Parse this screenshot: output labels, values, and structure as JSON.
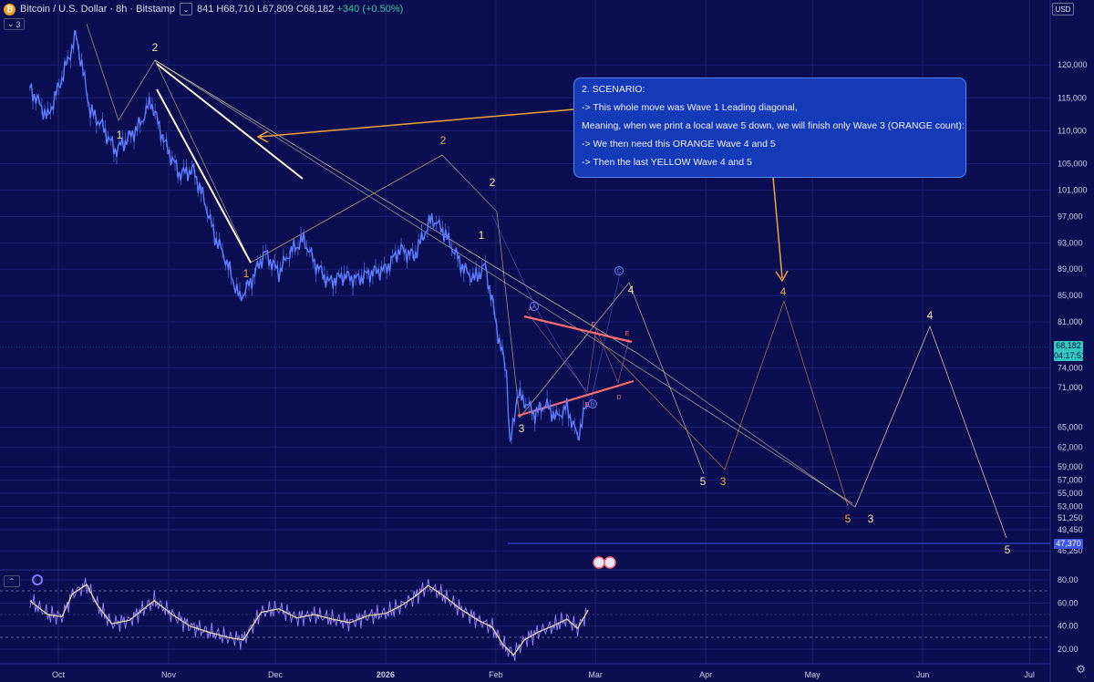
{
  "header": {
    "logo_glyph": "₿",
    "symbol": "Bitcoin / U.S. Dollar · 8h · Bitstamp",
    "dropdown_glyph": "⌄",
    "ohlc_text": "841 H68,710 L67,809 C68,182",
    "change_text": "+340 (+0.50%)",
    "sub_badge": "3",
    "currency": "USD"
  },
  "last_price": "68,182",
  "countdown": "04:17:51",
  "low_marker": "47,370",
  "rsi_badge": "⌃",
  "gear_glyph": "⚙",
  "colors": {
    "background": "#0b0f52",
    "price": "#5e7cff",
    "yellow": "#f3e7a6",
    "orange": "#f2a23c",
    "red": "#ff5b64",
    "rsi": "#9784ff",
    "rsi_ma": "#f1e1b0",
    "grid": "#1b2070"
  },
  "annotation": {
    "lines": [
      "2. SCENARIO:",
      "-> This whole move was Wave 1 Leading diagonal,",
      "Meaning, when we print a local wave 5 down, we will finish only Wave 3 (ORANGE count):",
      "-> We then need this ORANGE Wave 4 and 5",
      "-> Then the last YELLOW Wave 4 and 5"
    ]
  },
  "chart_data": [
    {
      "type": "line",
      "ylim": [
        45000,
        126000
      ],
      "x_tick_labels": [
        "Oct",
        "Nov",
        "Dec",
        "2026",
        "Feb",
        "Mar",
        "Apr",
        "May",
        "Jun",
        "Jul"
      ],
      "y_tick_labels": [
        "120,000",
        "115,000",
        "110,000",
        "105,000",
        "101,000",
        "97,000",
        "93,000",
        "89,000",
        "85,000",
        "81,000",
        "74,000",
        "71,000",
        "65,000",
        "62,000",
        "59,000",
        "57,000",
        "55,000",
        "53,000",
        "51,250",
        "49,450",
        "46,250"
      ],
      "series": [
        {
          "x": [
            "2025-09-23",
            "2025-09-28",
            "2025-10-02",
            "2025-10-06",
            "2025-10-10",
            "2025-10-13",
            "2025-10-17",
            "2025-10-21",
            "2025-10-24",
            "2025-10-27",
            "2025-10-31",
            "2025-11-04",
            "2025-11-08",
            "2025-11-11",
            "2025-11-14",
            "2025-11-17",
            "2025-11-21",
            "2025-11-24",
            "2025-11-28",
            "2025-12-02",
            "2025-12-05",
            "2025-12-09",
            "2025-12-12",
            "2025-12-16",
            "2025-12-20",
            "2025-12-24",
            "2025-12-28",
            "2026-01-01",
            "2026-01-05",
            "2026-01-09",
            "2026-01-12",
            "2026-01-14",
            "2026-01-17",
            "2026-01-20",
            "2026-01-23",
            "2026-01-26",
            "2026-01-29",
            "2026-01-31",
            "2026-02-02",
            "2026-02-04",
            "2026-02-05",
            "2026-02-07",
            "2026-02-09",
            "2026-02-12",
            "2026-02-15",
            "2026-02-18",
            "2026-02-21",
            "2026-02-24",
            "2026-02-26",
            "2026-02-27"
          ],
          "values": [
            116500,
            112000,
            118000,
            124500,
            113000,
            111000,
            107000,
            109000,
            111000,
            114500,
            108000,
            103500,
            104000,
            99500,
            94000,
            90500,
            84500,
            87000,
            91500,
            88500,
            91500,
            93500,
            90000,
            87000,
            88000,
            87500,
            88500,
            89000,
            92000,
            91000,
            94500,
            96700,
            95000,
            92000,
            89000,
            87500,
            89500,
            84000,
            78000,
            73500,
            62000,
            70000,
            69000,
            67000,
            68500,
            66500,
            68000,
            63500,
            67500,
            68182
          ]
        }
      ],
      "wave_labels": [
        "1",
        "2",
        "1",
        "2",
        "1",
        "2",
        "3",
        "4",
        "5",
        "3",
        "4",
        "5",
        "3",
        "4",
        "5"
      ],
      "triangle_labels": [
        "A",
        "B",
        "C",
        "D",
        "E"
      ],
      "circled_labels": [
        "A",
        "B",
        "C"
      ]
    },
    {
      "type": "line",
      "ylim": [
        10,
        85
      ],
      "y_tick_labels": [
        "80.00",
        "60.00",
        "40.00",
        "20.00"
      ],
      "series": [
        {
          "x": [
            "2025-09-23",
            "2025-09-28",
            "2025-10-02",
            "2025-10-05",
            "2025-10-09",
            "2025-10-12",
            "2025-10-16",
            "2025-10-21",
            "2025-10-25",
            "2025-10-28",
            "2025-11-02",
            "2025-11-07",
            "2025-11-12",
            "2025-11-18",
            "2025-11-22",
            "2025-11-27",
            "2025-12-02",
            "2025-12-07",
            "2025-12-12",
            "2025-12-17",
            "2025-12-22",
            "2025-12-27",
            "2026-01-01",
            "2026-01-05",
            "2026-01-09",
            "2026-01-13",
            "2026-01-17",
            "2026-01-22",
            "2026-01-27",
            "2026-01-31",
            "2026-02-03",
            "2026-02-06",
            "2026-02-09",
            "2026-02-13",
            "2026-02-17",
            "2026-02-21",
            "2026-02-24",
            "2026-02-27"
          ],
          "values": [
            62,
            50,
            48,
            68,
            76,
            58,
            42,
            45,
            55,
            62,
            50,
            40,
            35,
            30,
            28,
            52,
            55,
            47,
            50,
            46,
            43,
            49,
            51,
            57,
            65,
            75,
            67,
            55,
            45,
            39,
            24,
            15,
            28,
            35,
            40,
            46,
            38,
            54
          ]
        }
      ]
    }
  ]
}
